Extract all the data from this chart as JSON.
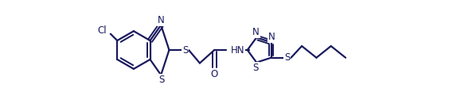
{
  "background_color": "#ffffff",
  "line_color": "#1a1a5e",
  "line_width": 1.6,
  "font_size": 8.5,
  "figsize": [
    5.74,
    1.26
  ],
  "dpi": 100,
  "xlim": [
    0.0,
    10.5
  ],
  "ylim": [
    -1.2,
    2.2
  ]
}
